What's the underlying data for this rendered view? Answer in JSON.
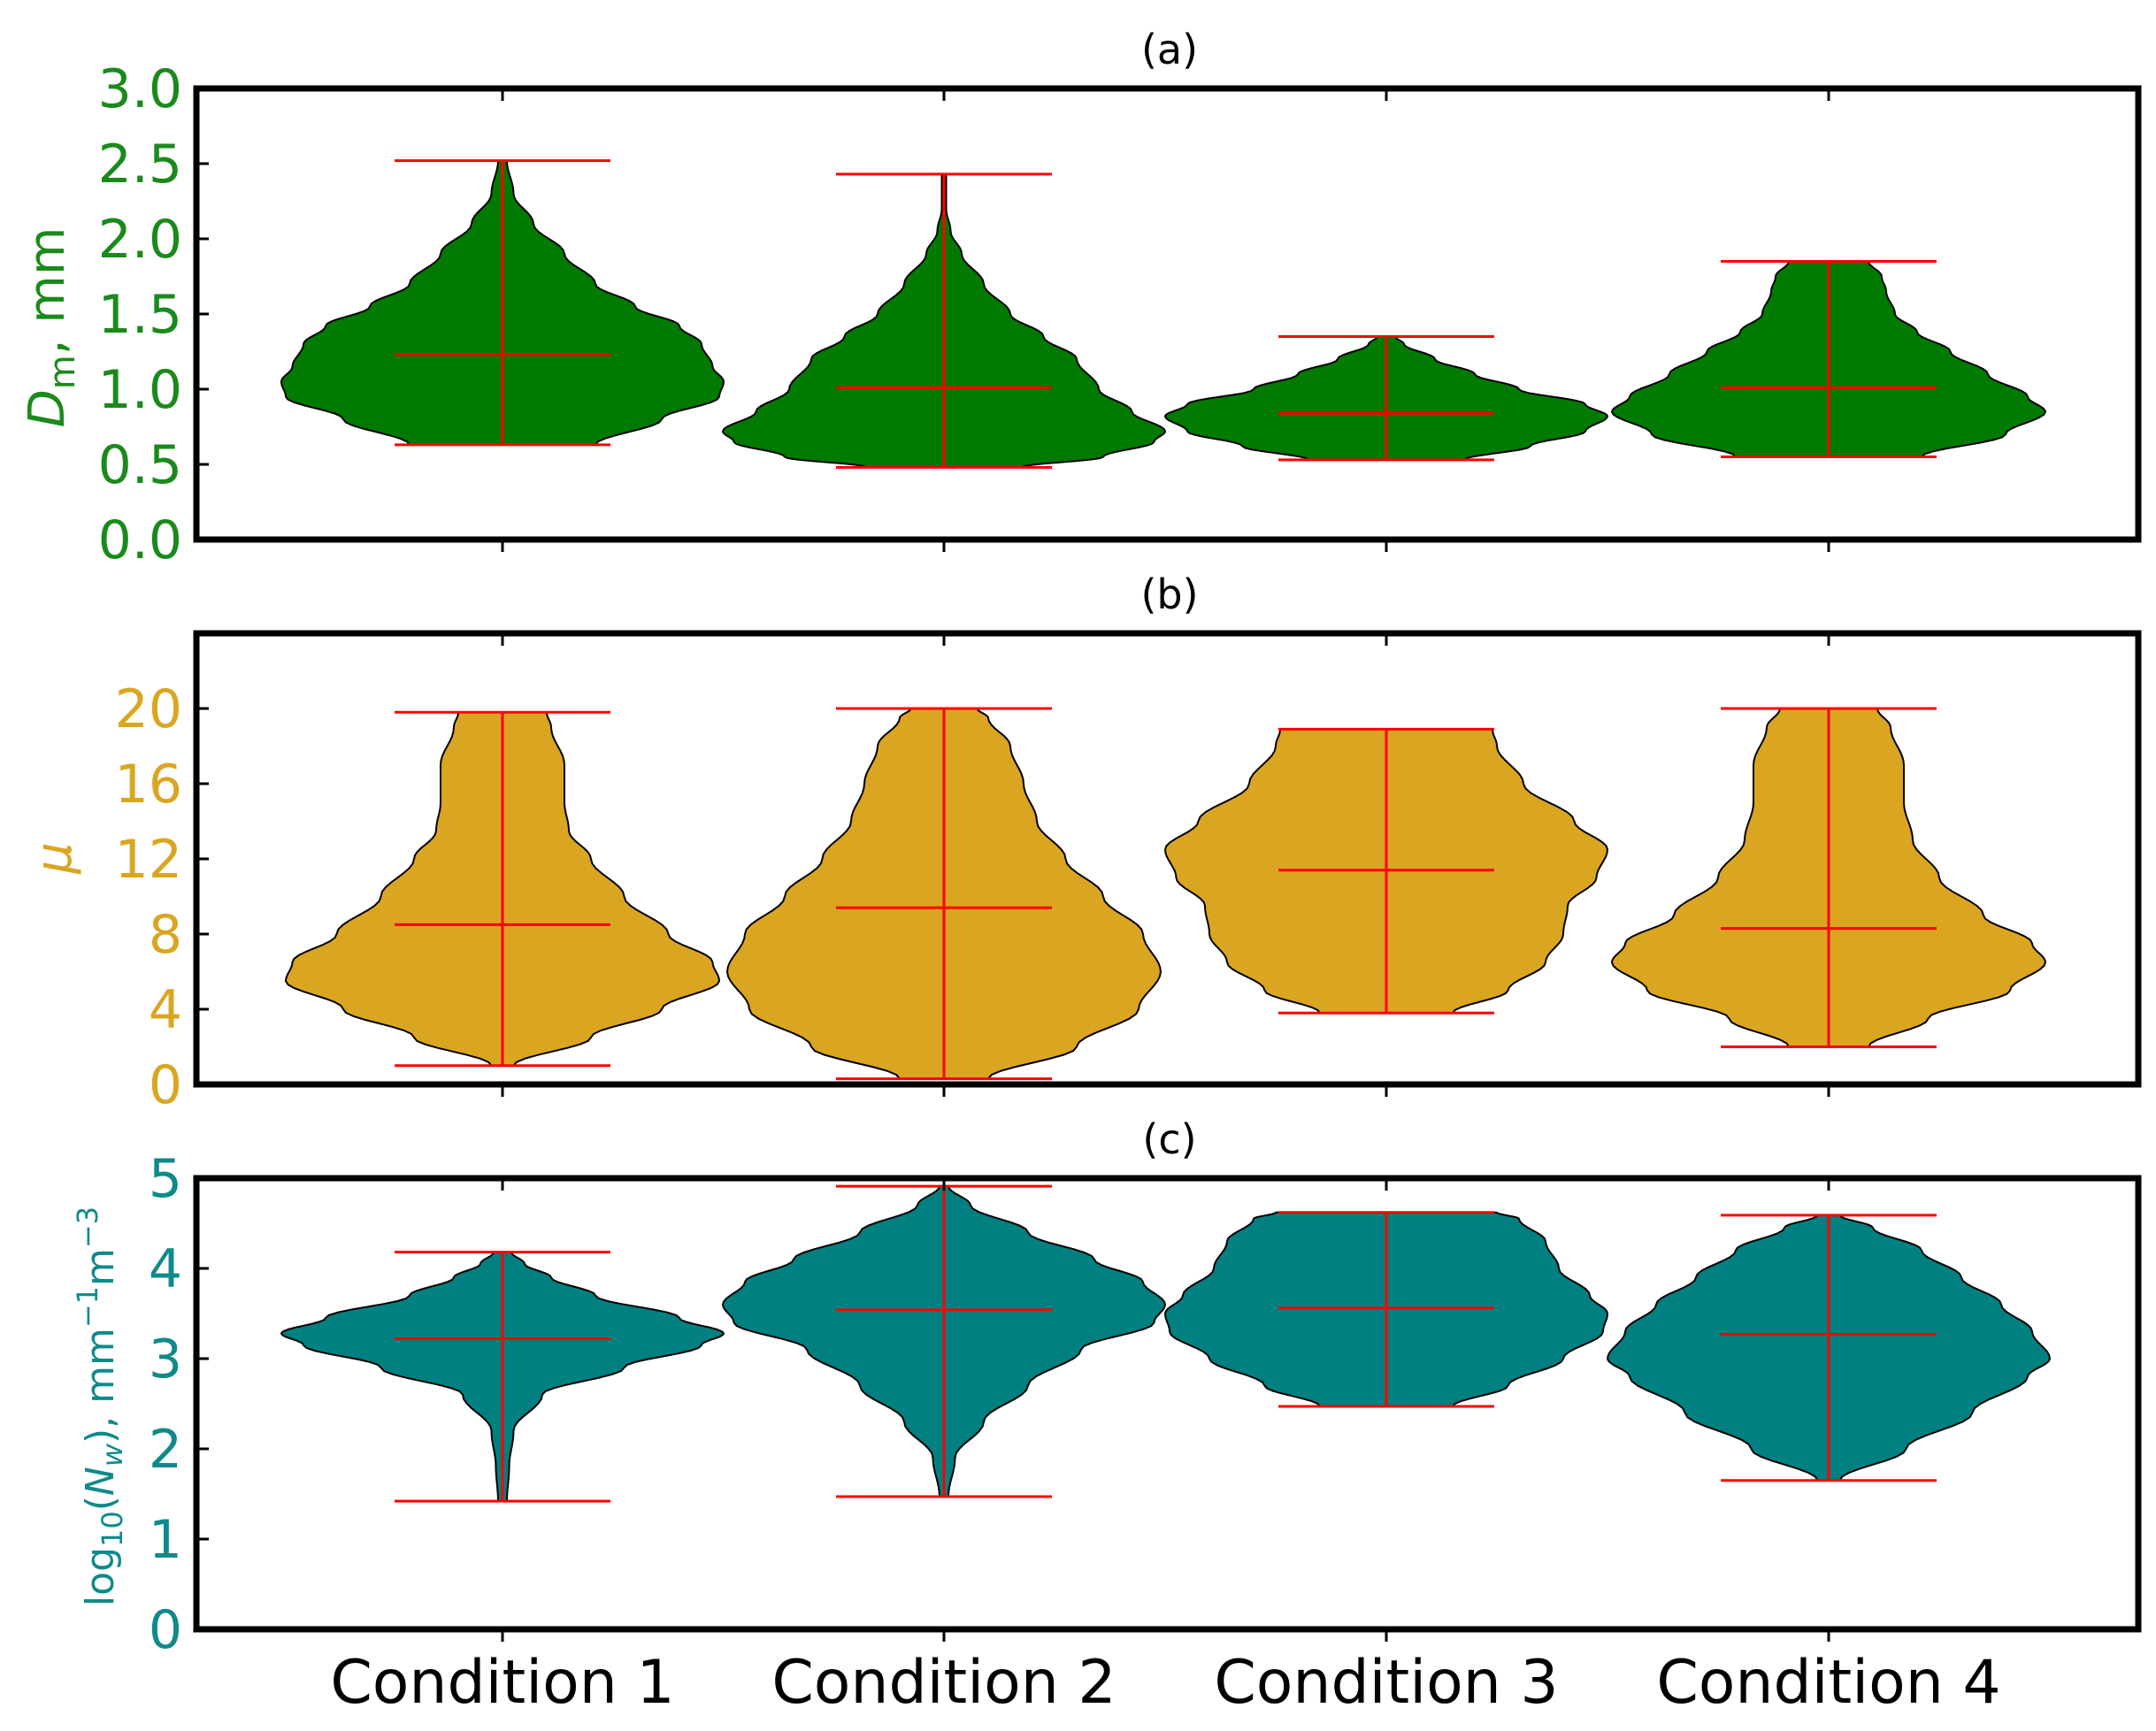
{
  "chart_data": [
    {
      "panel": "(a)",
      "type": "violin",
      "title": "(a)",
      "ylabel": "D_m, mm",
      "ylabel_parts": {
        "symbol": "D",
        "sub": "m",
        "rest": ", mm"
      },
      "color": "#007a00",
      "axis_color": "#1a8a1a",
      "yticks": [
        "0.0",
        "0.5",
        "1.0",
        "1.5",
        "2.0",
        "2.5",
        "3.0"
      ],
      "ylim": [
        0,
        3.0
      ],
      "categories": [
        "Condition 1",
        "Condition 2",
        "Condition 3",
        "Condition 4"
      ],
      "violins": [
        {
          "min": 0.63,
          "max": 2.52,
          "mean": 1.23,
          "profile": [
            [
              0.63,
              0.42
            ],
            [
              0.8,
              0.72
            ],
            [
              0.95,
              0.98
            ],
            [
              1.05,
              1.0
            ],
            [
              1.15,
              0.95
            ],
            [
              1.3,
              0.9
            ],
            [
              1.42,
              0.8
            ],
            [
              1.55,
              0.6
            ],
            [
              1.7,
              0.42
            ],
            [
              1.9,
              0.28
            ],
            [
              2.1,
              0.14
            ],
            [
              2.3,
              0.05
            ],
            [
              2.52,
              0.02
            ]
          ]
        },
        {
          "min": 0.48,
          "max": 2.43,
          "mean": 1.01,
          "profile": [
            [
              0.48,
              0.35
            ],
            [
              0.55,
              0.72
            ],
            [
              0.65,
              0.95
            ],
            [
              0.72,
              1.0
            ],
            [
              0.85,
              0.85
            ],
            [
              1.0,
              0.7
            ],
            [
              1.2,
              0.6
            ],
            [
              1.35,
              0.45
            ],
            [
              1.5,
              0.3
            ],
            [
              1.7,
              0.18
            ],
            [
              1.9,
              0.08
            ],
            [
              2.05,
              0.03
            ],
            [
              2.2,
              0.01
            ],
            [
              2.43,
              0.01
            ]
          ]
        },
        {
          "min": 0.53,
          "max": 1.35,
          "mean": 0.84,
          "profile": [
            [
              0.53,
              0.35
            ],
            [
              0.62,
              0.65
            ],
            [
              0.72,
              0.9
            ],
            [
              0.82,
              1.0
            ],
            [
              0.9,
              0.9
            ],
            [
              1.0,
              0.6
            ],
            [
              1.1,
              0.4
            ],
            [
              1.2,
              0.22
            ],
            [
              1.3,
              0.08
            ],
            [
              1.35,
              0.04
            ]
          ]
        },
        {
          "min": 0.55,
          "max": 1.85,
          "mean": 1.01,
          "profile": [
            [
              0.55,
              0.42
            ],
            [
              0.7,
              0.8
            ],
            [
              0.85,
              0.98
            ],
            [
              0.95,
              0.9
            ],
            [
              1.1,
              0.72
            ],
            [
              1.25,
              0.55
            ],
            [
              1.38,
              0.4
            ],
            [
              1.5,
              0.3
            ],
            [
              1.65,
              0.26
            ],
            [
              1.75,
              0.24
            ],
            [
              1.85,
              0.18
            ]
          ]
        }
      ]
    },
    {
      "panel": "(b)",
      "type": "violin",
      "title": "(b)",
      "ylabel": "μ",
      "color": "#daa520",
      "axis_color": "#daa520",
      "yticks": [
        "0",
        "4",
        "8",
        "12",
        "16",
        "20"
      ],
      "ylim": [
        0,
        24
      ],
      "categories": [
        "Condition 1",
        "Condition 2",
        "Condition 3",
        "Condition 4"
      ],
      "violins": [
        {
          "min": 1.0,
          "max": 19.8,
          "mean": 8.5,
          "profile": [
            [
              1.0,
              0.05
            ],
            [
              2.5,
              0.4
            ],
            [
              4.0,
              0.72
            ],
            [
              5.5,
              0.98
            ],
            [
              6.5,
              0.95
            ],
            [
              8.0,
              0.75
            ],
            [
              10.0,
              0.55
            ],
            [
              12.0,
              0.4
            ],
            [
              13.5,
              0.3
            ],
            [
              15.0,
              0.28
            ],
            [
              17.0,
              0.28
            ],
            [
              19.0,
              0.22
            ],
            [
              19.8,
              0.2
            ]
          ]
        },
        {
          "min": 0.3,
          "max": 20.0,
          "mean": 9.4,
          "profile": [
            [
              0.3,
              0.2
            ],
            [
              2.0,
              0.6
            ],
            [
              4.0,
              0.88
            ],
            [
              6.0,
              0.98
            ],
            [
              8.0,
              0.9
            ],
            [
              10.0,
              0.72
            ],
            [
              12.0,
              0.55
            ],
            [
              14.0,
              0.42
            ],
            [
              16.0,
              0.36
            ],
            [
              18.0,
              0.3
            ],
            [
              19.5,
              0.2
            ],
            [
              20.0,
              0.15
            ]
          ]
        },
        {
          "min": 3.8,
          "max": 18.9,
          "mean": 11.4,
          "profile": [
            [
              3.8,
              0.3
            ],
            [
              5.0,
              0.55
            ],
            [
              6.5,
              0.72
            ],
            [
              8.0,
              0.8
            ],
            [
              9.5,
              0.82
            ],
            [
              11.0,
              0.95
            ],
            [
              12.5,
              1.0
            ],
            [
              14.0,
              0.85
            ],
            [
              16.0,
              0.62
            ],
            [
              18.0,
              0.5
            ],
            [
              18.9,
              0.48
            ]
          ]
        },
        {
          "min": 2.0,
          "max": 20.0,
          "mean": 8.3,
          "profile": [
            [
              2.0,
              0.18
            ],
            [
              3.5,
              0.45
            ],
            [
              5.0,
              0.82
            ],
            [
              6.5,
              0.98
            ],
            [
              7.5,
              0.92
            ],
            [
              9.0,
              0.7
            ],
            [
              11.0,
              0.5
            ],
            [
              13.0,
              0.38
            ],
            [
              15.0,
              0.34
            ],
            [
              17.0,
              0.34
            ],
            [
              19.0,
              0.28
            ],
            [
              20.0,
              0.22
            ]
          ]
        }
      ]
    },
    {
      "panel": "(c)",
      "type": "violin",
      "title": "(c)",
      "ylabel": "log10(N_w), mm^-1 m^-3",
      "ylabel_parts": {
        "pre": "log",
        "sub1": "10",
        "mid": "(",
        "symbol": "N",
        "sub2": "w",
        "post": "), mm",
        "sup1": "−1",
        "m": "m",
        "sup2": "−3"
      },
      "color": "#008080",
      "axis_color": "#0f8a8a",
      "yticks": [
        "0",
        "1",
        "2",
        "3",
        "4",
        "5"
      ],
      "ylim": [
        0,
        5
      ],
      "categories": [
        "Condition 1",
        "Condition 2",
        "Condition 3",
        "Condition 4"
      ],
      "violins": [
        {
          "min": 1.42,
          "max": 4.18,
          "mean": 3.22,
          "profile": [
            [
              1.42,
              0.02
            ],
            [
              1.8,
              0.03
            ],
            [
              2.2,
              0.05
            ],
            [
              2.6,
              0.18
            ],
            [
              2.9,
              0.55
            ],
            [
              3.15,
              0.9
            ],
            [
              3.28,
              1.0
            ],
            [
              3.45,
              0.8
            ],
            [
              3.7,
              0.42
            ],
            [
              3.9,
              0.22
            ],
            [
              4.05,
              0.1
            ],
            [
              4.18,
              0.04
            ]
          ]
        },
        {
          "min": 1.47,
          "max": 4.91,
          "mean": 3.54,
          "profile": [
            [
              1.47,
              0.02
            ],
            [
              1.9,
              0.05
            ],
            [
              2.3,
              0.18
            ],
            [
              2.7,
              0.38
            ],
            [
              3.1,
              0.62
            ],
            [
              3.4,
              0.95
            ],
            [
              3.6,
              1.0
            ],
            [
              3.85,
              0.9
            ],
            [
              4.1,
              0.68
            ],
            [
              4.4,
              0.38
            ],
            [
              4.7,
              0.12
            ],
            [
              4.91,
              0.02
            ]
          ]
        },
        {
          "min": 2.47,
          "max": 4.62,
          "mean": 3.56,
          "profile": [
            [
              2.47,
              0.3
            ],
            [
              2.7,
              0.55
            ],
            [
              3.0,
              0.8
            ],
            [
              3.3,
              0.98
            ],
            [
              3.5,
              1.0
            ],
            [
              3.7,
              0.92
            ],
            [
              4.0,
              0.78
            ],
            [
              4.3,
              0.72
            ],
            [
              4.55,
              0.6
            ],
            [
              4.62,
              0.5
            ]
          ]
        },
        {
          "min": 1.65,
          "max": 4.59,
          "mean": 3.27,
          "profile": [
            [
              1.65,
              0.05
            ],
            [
              2.0,
              0.35
            ],
            [
              2.4,
              0.65
            ],
            [
              2.8,
              0.9
            ],
            [
              3.0,
              1.0
            ],
            [
              3.3,
              0.92
            ],
            [
              3.6,
              0.78
            ],
            [
              3.9,
              0.6
            ],
            [
              4.2,
              0.42
            ],
            [
              4.45,
              0.2
            ],
            [
              4.59,
              0.05
            ]
          ]
        }
      ]
    }
  ],
  "x_tick_labels": [
    "Condition 1",
    "Condition 2",
    "Condition 3",
    "Condition 4"
  ],
  "extrema_color": "#ff0000"
}
